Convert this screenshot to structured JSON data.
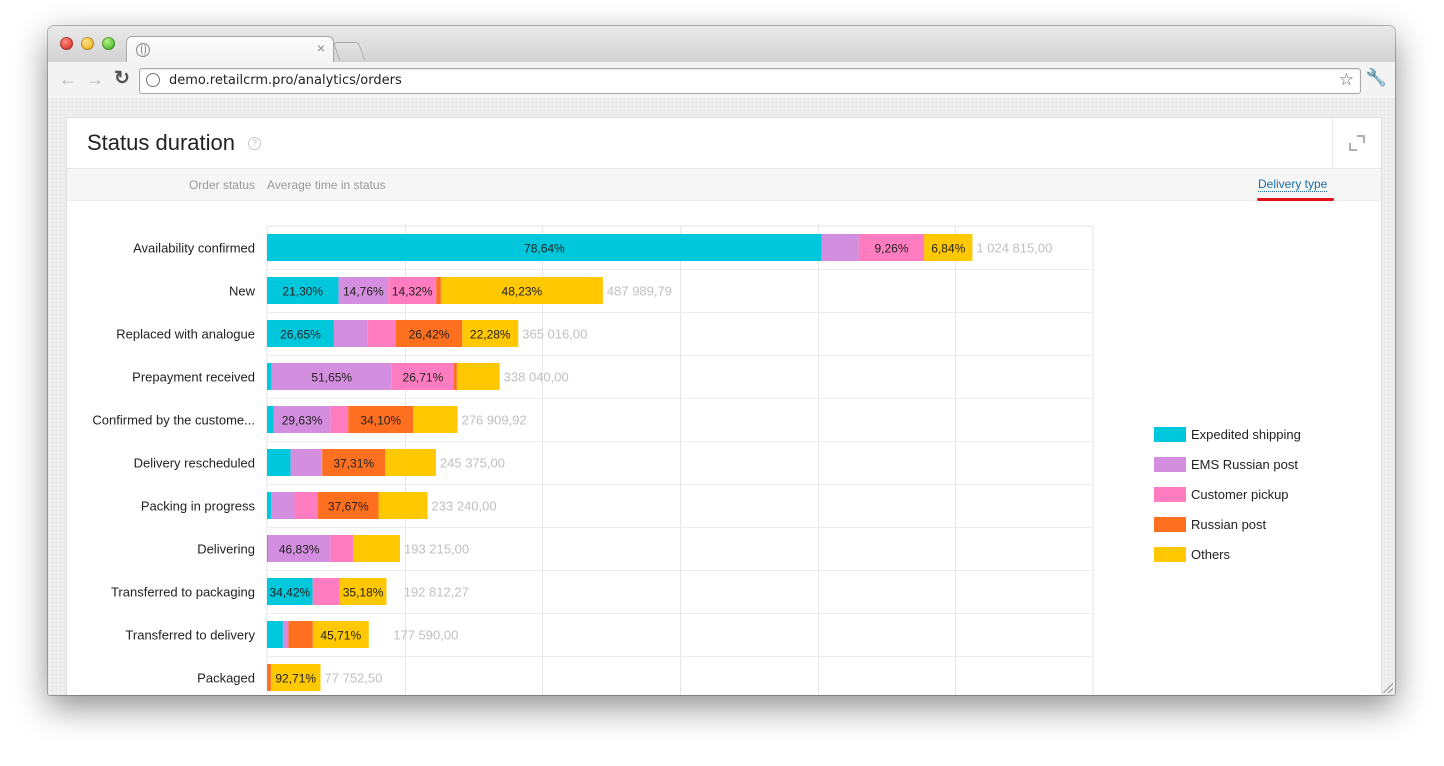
{
  "browser": {
    "url": "demo.retailcrm.pro/analytics/orders",
    "tab_close": "×"
  },
  "card": {
    "title": "Status duration",
    "help": "?",
    "col_status": "Order status",
    "col_avg": "Average time in status",
    "delivery_type": "Delivery type"
  },
  "chart_data": {
    "type": "bar",
    "orientation": "horizontal",
    "stacked": true,
    "grid": true,
    "legend_position": "right",
    "xlim": [
      0,
      1200000
    ],
    "categories": [
      "Availability confirmed",
      "New",
      "Replaced with analogue",
      "Prepayment received",
      "Confirmed by the custome...",
      "Delivery rescheduled",
      "Packing in progress",
      "Delivering",
      "Transferred to packaging",
      "Transferred to delivery",
      "Packaged"
    ],
    "totals": [
      1024815.0,
      487989.79,
      365016.0,
      338040.0,
      276909.92,
      245375.0,
      233240.0,
      193215.0,
      192812.27,
      177590.0,
      77752.5
    ],
    "total_labels": [
      "1 024 815,00",
      "487 989,79",
      "365 016,00",
      "338 040,00",
      "276 909,92",
      "245 375,00",
      "233 240,00",
      "193 215,00",
      "192 812,27",
      "177 590,00",
      "77 752,50"
    ],
    "series": [
      {
        "name": "Expedited shipping",
        "color": "#00c8dc",
        "percent": [
          78.64,
          21.3,
          26.65,
          2.0,
          3.6,
          14.0,
          2.7,
          0.8,
          34.42,
          13.0,
          0.5
        ],
        "labels": [
          "78,64%",
          "21,30%",
          "26,65%",
          "",
          "",
          "",
          "",
          "",
          "34,42%",
          "",
          ""
        ]
      },
      {
        "name": "EMS Russian post",
        "color": "#d38ee0",
        "percent": [
          5.26,
          14.76,
          13.5,
          51.65,
          29.63,
          18.4,
          14.4,
          46.83,
          0.0,
          4.5,
          0.0
        ],
        "labels": [
          "",
          "14,76%",
          "",
          "51,65%",
          "29,63%",
          "",
          "",
          "46,83%",
          "",
          "",
          ""
        ]
      },
      {
        "name": "Customer pickup",
        "color": "#ff7cc0",
        "percent": [
          9.26,
          14.32,
          11.15,
          26.71,
          9.4,
          0.3,
          14.7,
          17.27,
          20.4,
          0.0,
          0.0
        ],
        "labels": [
          "9,26%",
          "14,32%",
          "",
          "26,71%",
          "",
          "",
          "",
          "",
          "",
          "",
          ""
        ]
      },
      {
        "name": "Russian post",
        "color": "#ff6f20",
        "percent": [
          0.0,
          1.39,
          26.42,
          1.24,
          34.1,
          37.31,
          37.67,
          0.0,
          0.0,
          20.0,
          6.79
        ],
        "labels": [
          "",
          "",
          "26,42%",
          "",
          "34,10%",
          "37,31%",
          "37,67%",
          "",
          "",
          "",
          ""
        ]
      },
      {
        "name": "Others",
        "color": "#ffc800",
        "percent": [
          6.84,
          48.23,
          22.28,
          18.4,
          23.27,
          30.0,
          30.53,
          35.1,
          35.18,
          45.71,
          92.71
        ],
        "labels": [
          "6,84%",
          "48,23%",
          "22,28%",
          "",
          "",
          "",
          "",
          "",
          "35,18%",
          "45,71%",
          "92,71%"
        ]
      }
    ]
  }
}
